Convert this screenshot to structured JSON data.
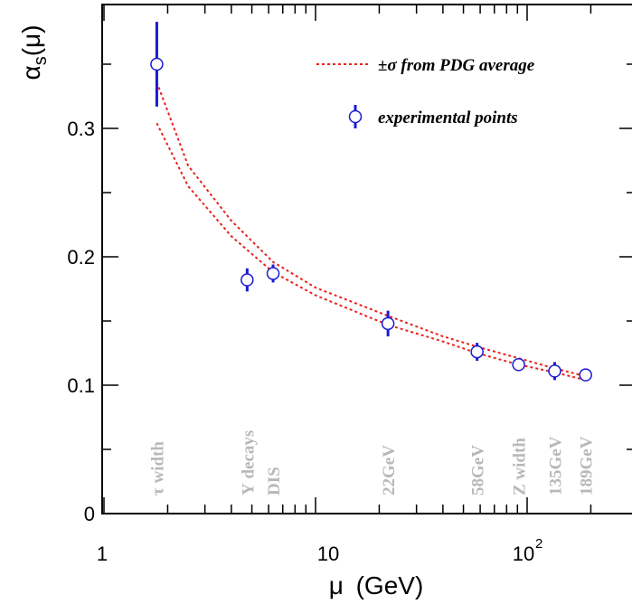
{
  "chart_data": {
    "type": "scatter",
    "xscale": "log",
    "xlim": [
      1,
      200
    ],
    "ylim": [
      0,
      0.38
    ],
    "xlabel_main": "μ",
    "xlabel_unit": "(GeV)",
    "ylabel_main": "α",
    "ylabel_sub": "s",
    "ylabel_tail": "(μ)",
    "x_ticks": [
      {
        "value": 1,
        "base": "1",
        "exp": ""
      },
      {
        "value": 10,
        "base": "10",
        "exp": ""
      },
      {
        "value": 100,
        "base": "10",
        "exp": "2"
      }
    ],
    "y_ticks": [
      {
        "value": 0,
        "label": "0"
      },
      {
        "value": 0.1,
        "label": "0.1"
      },
      {
        "value": 0.2,
        "label": "0.2"
      },
      {
        "value": 0.3,
        "label": "0.3"
      }
    ],
    "legend": {
      "band_label": "±σ from PDG average",
      "points_label": "experimental points"
    },
    "points": [
      {
        "x": 1.777,
        "y": 0.35,
        "err": 0.033
      },
      {
        "x": 4.75,
        "y": 0.182,
        "err": 0.009
      },
      {
        "x": 6.3,
        "y": 0.187,
        "err": 0.007
      },
      {
        "x": 22,
        "y": 0.148,
        "err": 0.01
      },
      {
        "x": 58,
        "y": 0.126,
        "err": 0.007
      },
      {
        "x": 91.2,
        "y": 0.116,
        "err": 0.003
      },
      {
        "x": 135,
        "y": 0.111,
        "err": 0.007
      },
      {
        "x": 189,
        "y": 0.108,
        "err": 0.003
      }
    ],
    "band_upper": [
      [
        1.777,
        0.336
      ],
      [
        2.5,
        0.271
      ],
      [
        4,
        0.228
      ],
      [
        6.3,
        0.196
      ],
      [
        10,
        0.176
      ],
      [
        22,
        0.154
      ],
      [
        40,
        0.138
      ],
      [
        58,
        0.13
      ],
      [
        91.2,
        0.121
      ],
      [
        135,
        0.113
      ],
      [
        189,
        0.107
      ]
    ],
    "band_lower": [
      [
        1.777,
        0.304
      ],
      [
        2.5,
        0.255
      ],
      [
        4,
        0.216
      ],
      [
        6.3,
        0.188
      ],
      [
        10,
        0.17
      ],
      [
        22,
        0.147
      ],
      [
        40,
        0.134
      ],
      [
        58,
        0.125
      ],
      [
        91.2,
        0.116
      ],
      [
        135,
        0.11
      ],
      [
        189,
        0.104
      ]
    ],
    "category_labels": [
      {
        "x": 1.777,
        "text": "τ width"
      },
      {
        "x": 4.75,
        "text": "Υ decays"
      },
      {
        "x": 6.3,
        "text": "DIS"
      },
      {
        "x": 22,
        "text": "22GeV"
      },
      {
        "x": 58,
        "text": "58GeV"
      },
      {
        "x": 91.2,
        "text": "Z width"
      },
      {
        "x": 135,
        "text": "135GeV"
      },
      {
        "x": 189,
        "text": "189GeV"
      }
    ],
    "colors": {
      "points": "#1a1ad4",
      "band": "#e8231e",
      "category_text": "#b8b8b8",
      "axis": "#000000"
    },
    "grid": false
  }
}
